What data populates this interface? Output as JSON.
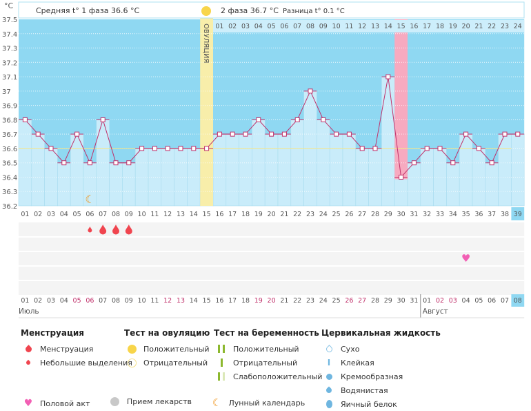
{
  "header": {
    "phase1": "Средняя t° 1 фаза 36.6 °C",
    "phase2": "2 фаза 36.7 °C",
    "diff": "Разница t° 0.1 °C",
    "ovulation": "ОВУЛЯЦИЯ",
    "unit": "°C"
  },
  "chart_data": {
    "type": "bar",
    "title": "",
    "ylabel": "°C",
    "ylim": [
      36.2,
      37.5
    ],
    "yticks": [
      "37.5",
      "37.4",
      "37.3",
      "37.2",
      "37.1",
      "37",
      "36.9",
      "36.8",
      "36.7",
      "36.6",
      "36.5",
      "36.4",
      "36.3",
      "36.2"
    ],
    "cycle_days": [
      "01",
      "02",
      "03",
      "04",
      "05",
      "06",
      "07",
      "08",
      "09",
      "10",
      "11",
      "12",
      "13",
      "14",
      "15",
      "16",
      "17",
      "18",
      "19",
      "20",
      "21",
      "22",
      "23",
      "24",
      "25",
      "26",
      "27",
      "28",
      "29",
      "30",
      "31",
      "32",
      "33",
      "34",
      "35",
      "36",
      "37",
      "38",
      "39"
    ],
    "temperatures": [
      36.8,
      36.7,
      36.6,
      36.5,
      36.7,
      36.5,
      36.8,
      36.5,
      36.5,
      36.6,
      36.6,
      36.6,
      36.6,
      36.6,
      36.6,
      36.7,
      36.7,
      36.7,
      36.8,
      36.7,
      36.7,
      36.8,
      37.0,
      36.8,
      36.7,
      36.7,
      36.6,
      36.6,
      37.1,
      36.4,
      36.5,
      36.6,
      36.6,
      36.5,
      36.7,
      36.6,
      36.5,
      36.7,
      36.7
    ],
    "phase1_average": 36.6,
    "ovulation_day": 15,
    "highlighted_day": 30,
    "phase2_days": [
      "01",
      "02",
      "03",
      "04",
      "05",
      "06",
      "07",
      "08",
      "09",
      "10",
      "11",
      "12",
      "13",
      "14",
      "15",
      "16",
      "17",
      "18",
      "19",
      "20",
      "21",
      "22",
      "23",
      "24"
    ],
    "dates": [
      "01",
      "02",
      "03",
      "04",
      "05",
      "06",
      "07",
      "08",
      "09",
      "10",
      "11",
      "12",
      "13",
      "14",
      "15",
      "16",
      "17",
      "18",
      "19",
      "20",
      "21",
      "22",
      "23",
      "24",
      "25",
      "26",
      "27",
      "28",
      "29",
      "30",
      "31",
      "01",
      "02",
      "03",
      "04",
      "05",
      "06",
      "07",
      "08"
    ],
    "weekend_day_indices": [
      4,
      5,
      11,
      12,
      18,
      19,
      25,
      26,
      32,
      33
    ],
    "months": [
      "Июль",
      "Август"
    ],
    "menstruation": {
      "small": [
        6
      ],
      "full": [
        7,
        8,
        9
      ]
    },
    "intercourse_days": [
      35
    ],
    "moon_days": [
      6
    ]
  },
  "colors": {
    "bg": "#8fd8f2",
    "bar": "#c9ecfa",
    "line": "#c0306a",
    "ovulation": "#f8eeaa",
    "pink": "#f7aac0",
    "avg": "#f3e58a",
    "weekend": "#c0306a"
  },
  "legend": {
    "menstruation": {
      "title": "Менструация",
      "items": [
        "Менструация",
        "Небольшие выделения"
      ]
    },
    "ovulation_test": {
      "title": "Тест на овуляцию",
      "items": [
        "Положительный",
        "Отрицательный"
      ]
    },
    "pregnancy_test": {
      "title": "Тест на беременность",
      "items": [
        "Положительный",
        "Отрицательный",
        "Слабоположительный"
      ]
    },
    "cervical": {
      "title": "Цервикальная жидкость",
      "items": [
        "Сухо",
        "Клейкая",
        "Кремообразная",
        "Водянистая",
        "Яичный белок"
      ]
    },
    "other": [
      "Половой акт",
      "Прием лекарств",
      "Лунный календарь"
    ]
  }
}
